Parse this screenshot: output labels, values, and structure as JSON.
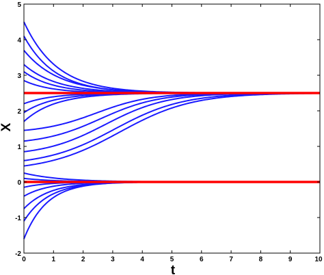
{
  "chart_data": {
    "type": "line",
    "title": "",
    "xlabel": "t",
    "ylabel": "X",
    "xlim": [
      0,
      10
    ],
    "ylim": [
      -2,
      5
    ],
    "xticks": [
      "0",
      "1",
      "2",
      "3",
      "4",
      "5",
      "6",
      "7",
      "8",
      "9",
      "10"
    ],
    "yticks": [
      "-2",
      "-1",
      "0",
      "1",
      "2",
      "3",
      "4",
      "5"
    ],
    "grid": false,
    "legend": "none",
    "colors": {
      "trajectories": "#1a1aff",
      "equilibria": "#ff0000",
      "axes": "#000000"
    },
    "equilibria": [
      2.5,
      0
    ],
    "trajectories_upper": {
      "target": 2.5,
      "series": [
        {
          "x0": 4.5,
          "k": 0.9
        },
        {
          "x0": 4.1,
          "k": 0.95
        },
        {
          "x0": 3.7,
          "k": 0.85
        },
        {
          "x0": 3.3,
          "k": 0.9
        },
        {
          "x0": 3.1,
          "k": 1.0
        },
        {
          "x0": 2.85,
          "k": 1.1
        },
        {
          "x0": 2.2,
          "k": 1.05
        },
        {
          "x0": 1.95,
          "k": 1.0
        },
        {
          "x0": 1.7,
          "k": 0.95
        },
        {
          "x0": 1.45,
          "k": 0.9
        },
        {
          "x0": 1.15,
          "k": 0.85
        },
        {
          "x0": 0.85,
          "k": 0.8
        },
        {
          "x0": 0.6,
          "k": 0.72
        },
        {
          "x0": 0.45,
          "k": 0.68
        }
      ]
    },
    "trajectories_lower": {
      "target": 0,
      "series": [
        {
          "x0": 0.25,
          "k": 0.8
        },
        {
          "x0": 0.1,
          "k": 0.9
        },
        {
          "x0": -0.15,
          "k": 1.3
        },
        {
          "x0": -0.4,
          "k": 1.2
        },
        {
          "x0": -0.75,
          "k": 1.15
        },
        {
          "x0": -1.1,
          "k": 1.2
        },
        {
          "x0": -1.6,
          "k": 1.3
        }
      ]
    }
  }
}
